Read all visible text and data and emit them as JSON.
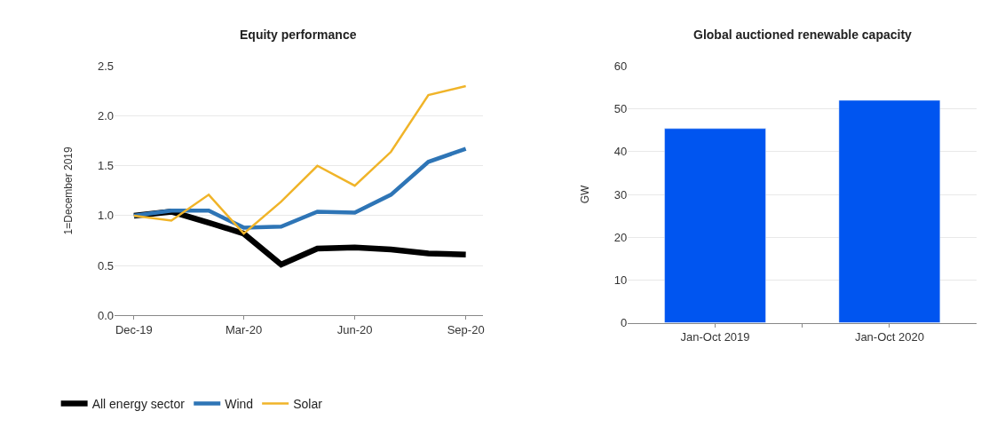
{
  "chart_data": [
    {
      "type": "line",
      "title": "Equity performance",
      "ylabel": "1=December 2019",
      "x": [
        "2019-12",
        "2020-01",
        "2020-02",
        "2020-03",
        "2020-04",
        "2020-05",
        "2020-06",
        "2020-07",
        "2020-08",
        "2020-09"
      ],
      "series": [
        {
          "name": "All energy sector",
          "color": "#000000",
          "values": [
            1.0,
            1.04,
            0.93,
            0.82,
            0.51,
            0.67,
            0.68,
            0.66,
            0.62,
            0.61
          ]
        },
        {
          "name": "Wind",
          "color": "#2e75b6",
          "values": [
            1.0,
            1.05,
            1.05,
            0.88,
            0.89,
            1.04,
            1.03,
            1.21,
            1.54,
            1.67
          ]
        },
        {
          "name": "Solar",
          "color": "#f0b429",
          "values": [
            1.0,
            0.95,
            1.21,
            0.82,
            1.14,
            1.5,
            1.3,
            1.64,
            2.21,
            2.3
          ]
        }
      ],
      "xlim": [
        "2019-11-15",
        "2020-09-15"
      ],
      "xticks": [
        {
          "value": "2019-12-01",
          "label": "Dec-19"
        },
        {
          "value": "2020-03-01",
          "label": "Mar-20"
        },
        {
          "value": "2020-06-01",
          "label": "Jun-20"
        },
        {
          "value": "2020-09-01",
          "label": "Sep-20"
        }
      ],
      "ylim": [
        0,
        2.5
      ],
      "yticks": [
        {
          "value": 0,
          "label": "0.0"
        },
        {
          "value": 0.5,
          "label": "0.5"
        },
        {
          "value": 1,
          "label": "1.0"
        },
        {
          "value": 1.5,
          "label": "1.5"
        },
        {
          "value": 2,
          "label": "2.0"
        },
        {
          "value": 2.5,
          "label": "2.5"
        }
      ],
      "grid": "y",
      "legend": "bottom",
      "marker": "none",
      "line_style": "solid"
    },
    {
      "type": "bar",
      "title": "Global auctioned renewable capacity",
      "ylabel": "GW",
      "categories": [
        "Jan-Oct 2019",
        "Jan-Oct 2020"
      ],
      "values": [
        45.4,
        52.0
      ],
      "color": "#0055f0",
      "ylim": [
        0,
        60
      ],
      "yticks": [
        0,
        10,
        20,
        30,
        40,
        50,
        60
      ],
      "grid": "y"
    }
  ]
}
